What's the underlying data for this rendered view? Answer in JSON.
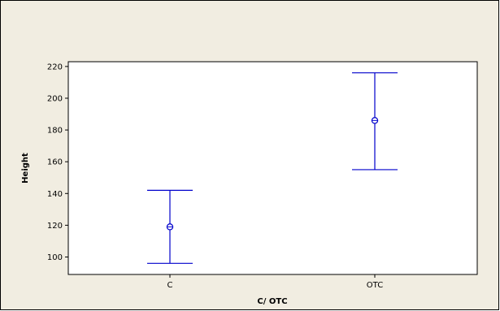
{
  "chart_data": {
    "type": "errorbar",
    "title": "",
    "xlabel": "C/ OTC",
    "ylabel": "Height",
    "categories": [
      "C",
      "OTC"
    ],
    "series": [
      {
        "values": [
          119,
          186
        ],
        "lower": [
          96,
          155
        ],
        "upper": [
          142,
          216
        ]
      }
    ],
    "ylim": [
      89,
      223
    ],
    "yticks": [
      100,
      120,
      140,
      160,
      180,
      200,
      220
    ],
    "grid": false,
    "colors": {
      "series": "#0000cc",
      "frame": "#000000",
      "panel_background": "#f1ede1",
      "plot_background": "#ffffff"
    }
  }
}
